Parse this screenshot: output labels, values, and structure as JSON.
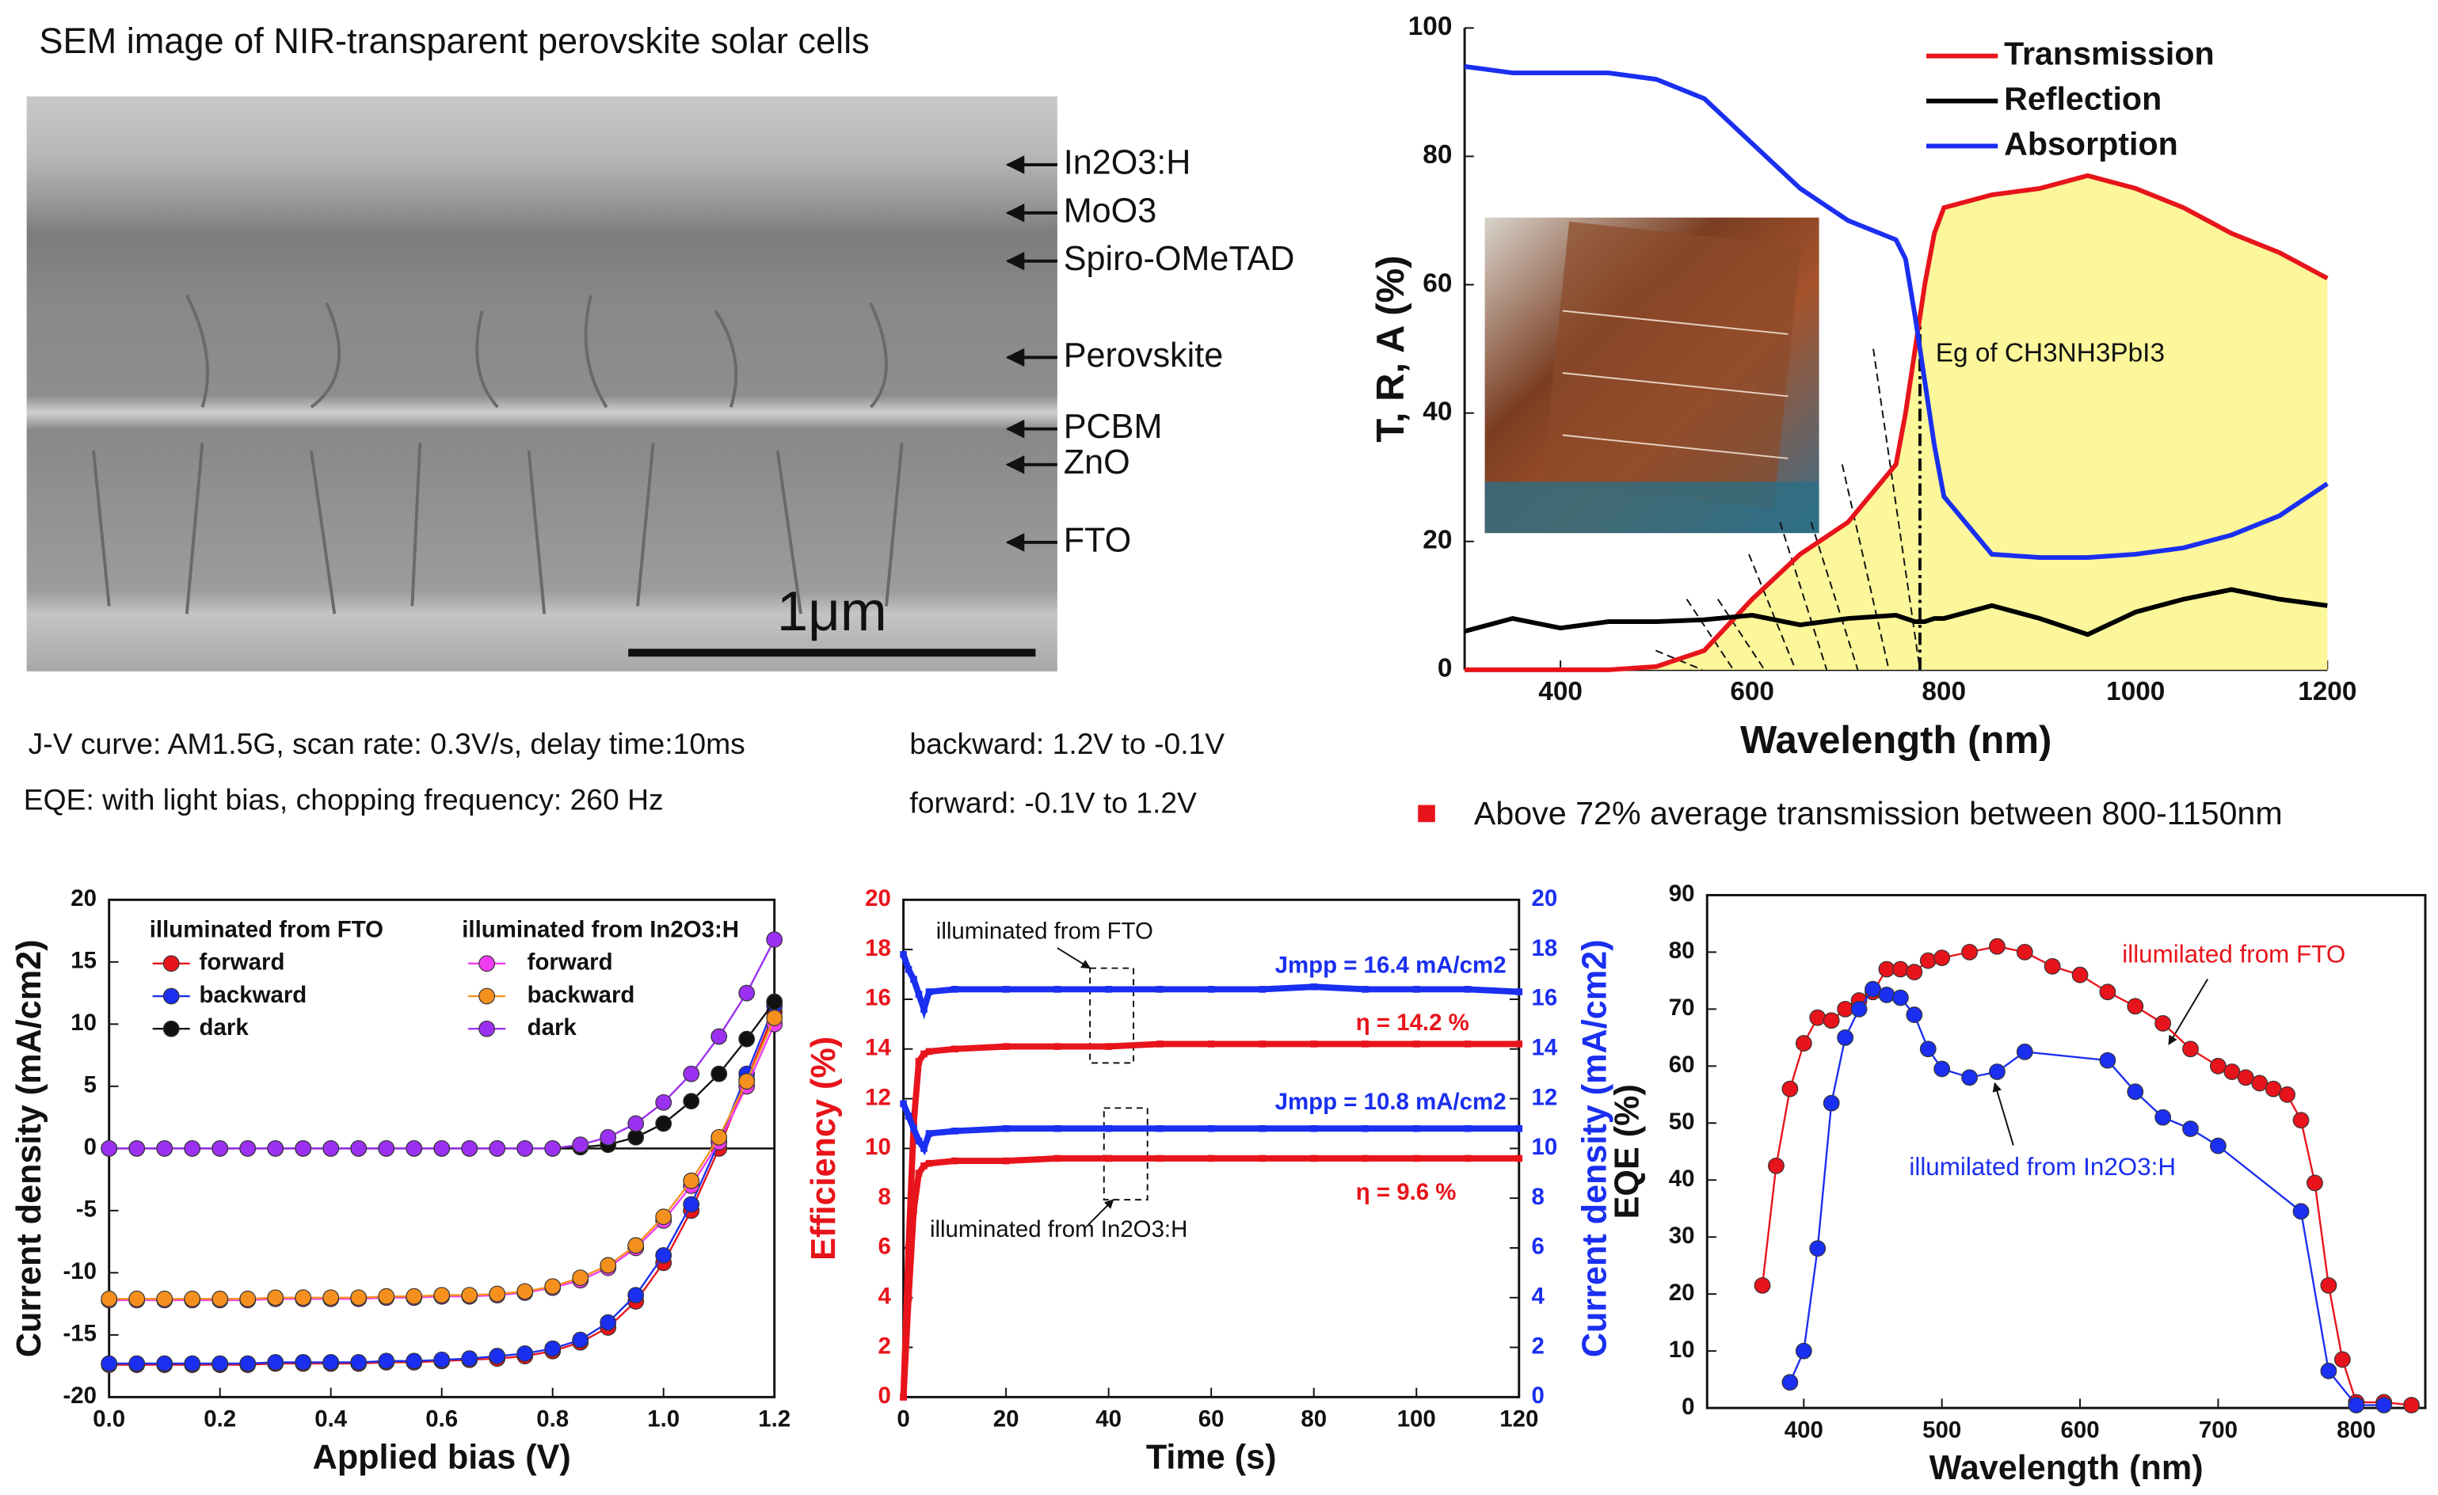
{
  "sem": {
    "title": "SEM image of NIR-transparent perovskite solar cells",
    "layers": [
      "In2O3:H",
      "MoO3",
      "Spiro-OMeTAD",
      "Perovskite",
      "PCBM",
      "ZnO",
      "FTO"
    ],
    "scale_bar": "1μm"
  },
  "notes": {
    "jv": "J-V curve: AM1.5G, scan rate: 0.3V/s, delay time:10ms",
    "backward": "backward: 1.2V to -0.1V",
    "eqe": "EQE: with light bias, chopping frequency: 260 Hz",
    "forward": "forward: -0.1V to 1.2V",
    "bullet": "Above 72% average transmission between 800-1150nm",
    "bullet_color": "#e8141b"
  },
  "chart_data": [
    {
      "type": "line",
      "xlabel": "Wavelength (nm)",
      "ylabel": "T, R, A (%)",
      "x": [
        300,
        350,
        400,
        450,
        500,
        550,
        600,
        650,
        700,
        750,
        760,
        770,
        780,
        790,
        800,
        850,
        900,
        950,
        1000,
        1050,
        1100,
        1150,
        1200
      ],
      "xlim": [
        300,
        1200
      ],
      "xticks": [
        400,
        600,
        800,
        1000,
        1200
      ],
      "ylim": [
        0,
        100
      ],
      "yticks": [
        0,
        20,
        40,
        60,
        80,
        100
      ],
      "legend": "upper right",
      "vline": 775,
      "annotations": [
        "Eg of CH3NH3PbI3"
      ],
      "series": [
        {
          "name": "Transmission",
          "color": "#e8141b",
          "fill_color": "#fbf79a",
          "values": [
            0,
            0,
            0,
            0,
            0.5,
            3,
            11,
            18,
            23,
            32,
            40,
            50,
            60,
            68,
            72,
            74,
            75,
            77,
            75,
            72,
            68,
            65,
            61
          ]
        },
        {
          "name": "Reflection",
          "color": "#000000",
          "values": [
            6,
            8,
            6.5,
            7.5,
            7.5,
            7.8,
            8.5,
            7,
            8,
            8.5,
            8,
            7.5,
            7.5,
            8,
            8,
            10,
            8,
            5.5,
            9,
            11,
            12.5,
            11,
            10
          ]
        },
        {
          "name": "Absorption",
          "color": "#1a2ff0",
          "values": [
            94,
            93,
            93,
            93,
            92,
            89,
            82,
            75,
            70,
            67,
            64,
            55,
            45,
            35,
            27,
            18,
            17.5,
            17.5,
            18,
            19,
            21,
            24,
            29
          ]
        }
      ]
    },
    {
      "type": "line",
      "marker": "circle",
      "xlabel": "Applied bias (V)",
      "ylabel": "Current density (mA/cm2)",
      "x": [
        0,
        0.05,
        0.1,
        0.15,
        0.2,
        0.25,
        0.3,
        0.35,
        0.4,
        0.45,
        0.5,
        0.55,
        0.6,
        0.65,
        0.7,
        0.75,
        0.8,
        0.85,
        0.9,
        0.95,
        1.0,
        1.05,
        1.1,
        1.15,
        1.2
      ],
      "xlim": [
        0,
        1.2
      ],
      "xticks": [
        {
          "value": 0,
          "label": "0.0"
        },
        0.2,
        0.4,
        0.6,
        0.8,
        {
          "value": 1,
          "label": "1.0"
        },
        1.2
      ],
      "ylim": [
        -20,
        20
      ],
      "yticks": [
        -20,
        -15,
        -10,
        -5,
        0,
        5,
        10,
        15,
        20
      ],
      "zero_line": true,
      "legend_titles": [
        "illuminated from FTO",
        "illuminated from In2O3:H"
      ],
      "series": [
        {
          "name": "forward",
          "color": "#e8141b",
          "values": [
            -17.4,
            -17.4,
            -17.4,
            -17.4,
            -17.4,
            -17.4,
            -17.3,
            -17.3,
            -17.3,
            -17.3,
            -17.2,
            -17.2,
            -17.1,
            -17.0,
            -16.9,
            -16.7,
            -16.3,
            -15.6,
            -14.4,
            -12.3,
            -9.2,
            -5.0,
            0.0,
            5.5,
            11
          ]
        },
        {
          "name": "backward",
          "color": "#1a2ff0",
          "values": [
            -17.3,
            -17.3,
            -17.3,
            -17.3,
            -17.3,
            -17.3,
            -17.2,
            -17.2,
            -17.2,
            -17.2,
            -17.1,
            -17.1,
            -17.0,
            -16.9,
            -16.7,
            -16.5,
            -16.1,
            -15.4,
            -14.0,
            -11.8,
            -8.6,
            -4.5,
            0.5,
            6.0,
            11.5
          ]
        },
        {
          "name": "dark",
          "color": "#111111",
          "values": [
            0,
            0,
            0,
            0,
            0,
            0,
            0,
            0,
            0,
            0,
            0,
            0,
            0,
            0,
            0,
            0,
            0,
            0.1,
            0.3,
            0.9,
            2.0,
            3.8,
            6.0,
            8.8,
            11.8
          ]
        },
        {
          "name": "forward",
          "color": "#f03cf0",
          "values": [
            -12.2,
            -12.2,
            -12.2,
            -12.2,
            -12.2,
            -12.2,
            -12.1,
            -12.1,
            -12.1,
            -12.1,
            -12.0,
            -12.0,
            -11.9,
            -11.9,
            -11.8,
            -11.6,
            -11.2,
            -10.6,
            -9.6,
            -8.0,
            -5.8,
            -3.0,
            0.5,
            5.0,
            10.0
          ]
        },
        {
          "name": "backward",
          "color": "#f5901e",
          "values": [
            -12.1,
            -12.1,
            -12.1,
            -12.1,
            -12.1,
            -12.1,
            -12.0,
            -12.0,
            -12.0,
            -12.0,
            -11.9,
            -11.9,
            -11.8,
            -11.8,
            -11.7,
            -11.5,
            -11.1,
            -10.4,
            -9.4,
            -7.8,
            -5.5,
            -2.6,
            0.9,
            5.4,
            10.5
          ]
        },
        {
          "name": "dark",
          "color": "#9b30f0",
          "values": [
            0,
            0,
            0,
            0,
            0,
            0,
            0,
            0,
            0,
            0,
            0,
            0,
            0,
            0,
            0,
            0,
            0,
            0.3,
            0.9,
            2.0,
            3.7,
            6.0,
            9.0,
            12.5,
            16.8
          ]
        }
      ]
    },
    {
      "type": "line",
      "marker": "square",
      "xlabel": "Time (s)",
      "ylabel": "Efficiency (%)",
      "y2label": "Current density (mA/cm2)",
      "y_color": "#e8141b",
      "y2_color": "#1a2ff0",
      "x": [
        0,
        1,
        2,
        3,
        4,
        5,
        10,
        20,
        30,
        40,
        50,
        60,
        70,
        80,
        90,
        100,
        110,
        120
      ],
      "xlim": [
        0,
        120
      ],
      "xticks": [
        0,
        20,
        40,
        60,
        80,
        100,
        120
      ],
      "ylim": [
        0,
        20
      ],
      "yticks": [
        0,
        2,
        4,
        6,
        8,
        10,
        12,
        14,
        16,
        18,
        20
      ],
      "y2lim": [
        0,
        20
      ],
      "y2ticks": [
        0,
        2,
        4,
        6,
        8,
        10,
        12,
        14,
        16,
        18,
        20
      ],
      "annotations": [
        "illuminated from FTO",
        "Jmpp = 16.4 mA/cm2",
        "η = 14.2 %",
        "Jmpp = 10.8 mA/cm2",
        "η = 9.6 %",
        "illuminated from In2O3:H"
      ],
      "series": [
        {
          "color": "#e8141b",
          "values": [
            0,
            6,
            11,
            13.5,
            13.8,
            13.9,
            14.0,
            14.1,
            14.1,
            14.1,
            14.2,
            14.2,
            14.2,
            14.2,
            14.2,
            14.2,
            14.2,
            14.2
          ]
        },
        {
          "color": "#1a2ff0",
          "axis": "y2",
          "values": [
            17.8,
            17.2,
            16.8,
            16.2,
            15.6,
            16.3,
            16.4,
            16.4,
            16.4,
            16.4,
            16.4,
            16.4,
            16.4,
            16.5,
            16.4,
            16.4,
            16.4,
            16.3
          ]
        },
        {
          "color": "#e8141b",
          "values": [
            0,
            4,
            7.5,
            9.0,
            9.3,
            9.4,
            9.5,
            9.5,
            9.6,
            9.6,
            9.6,
            9.6,
            9.6,
            9.6,
            9.6,
            9.6,
            9.6,
            9.6
          ]
        },
        {
          "color": "#1a2ff0",
          "axis": "y2",
          "values": [
            11.8,
            11.3,
            10.8,
            10.3,
            10.0,
            10.6,
            10.7,
            10.8,
            10.8,
            10.8,
            10.8,
            10.8,
            10.8,
            10.8,
            10.8,
            10.8,
            10.8,
            10.8
          ]
        }
      ]
    },
    {
      "type": "line",
      "marker": "circle",
      "xlabel": "Wavelength (nm)",
      "ylabel": "EQE (%)",
      "xlim": [
        330,
        850
      ],
      "xticks": [
        400,
        500,
        600,
        700,
        800
      ],
      "ylim": [
        0,
        90
      ],
      "yticks": [
        0,
        10,
        20,
        30,
        40,
        50,
        60,
        70,
        80,
        90
      ],
      "annotations": [
        "illumilated from FTO",
        "illumilated from In2O3:H"
      ],
      "series": [
        {
          "color": "#e8141b",
          "x": [
            370,
            380,
            390,
            400,
            410,
            420,
            430,
            440,
            450,
            460,
            470,
            480,
            490,
            500,
            520,
            540,
            560,
            580,
            600,
            620,
            640,
            660,
            680,
            700,
            710,
            720,
            730,
            740,
            750,
            760,
            770,
            780,
            790,
            800,
            820,
            840
          ],
          "values": [
            21.5,
            42.5,
            56,
            64,
            68.5,
            68,
            70,
            71.5,
            73,
            77,
            77,
            76.5,
            78.5,
            79,
            80,
            81,
            80,
            77.5,
            76,
            73,
            70.5,
            67.5,
            63,
            60,
            59,
            58,
            57,
            56,
            55,
            50.5,
            39.5,
            21.5,
            8.5,
            1,
            1,
            0.5
          ]
        },
        {
          "color": "#1a2ff0",
          "x": [
            390,
            400,
            410,
            420,
            430,
            440,
            450,
            460,
            470,
            480,
            490,
            500,
            520,
            540,
            560,
            620,
            640,
            660,
            680,
            700,
            760,
            780,
            800,
            820
          ],
          "values": [
            4.5,
            10,
            28,
            53.5,
            65,
            70,
            73.5,
            72.5,
            72,
            69,
            63,
            59.5,
            58,
            59,
            62.5,
            61,
            55.5,
            51,
            49,
            46,
            34.5,
            6.5,
            0.5,
            0.5
          ]
        }
      ]
    }
  ]
}
